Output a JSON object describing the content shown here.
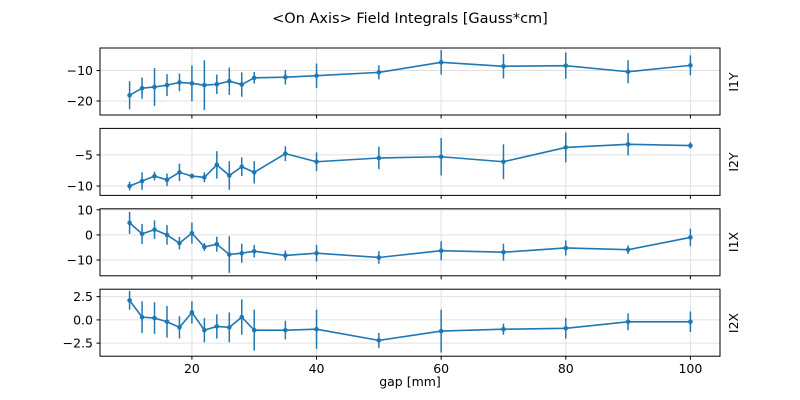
{
  "chart_data": {
    "type": "line",
    "title": "<On Axis> Field Integrals [Gauss*cm]",
    "xlabel": "gap [mm]",
    "line_color": "#1f77b4",
    "grid_color": "#e0e0e0",
    "grid": true,
    "legend": "none",
    "x": [
      10,
      12,
      14,
      16,
      18,
      20,
      22,
      24,
      26,
      28,
      30,
      35,
      40,
      50,
      60,
      70,
      80,
      90,
      100
    ],
    "xlim": [
      5.25,
      104.75
    ],
    "xticks": [
      20,
      40,
      60,
      80,
      100
    ],
    "xtick_labels": [
      "20",
      "40",
      "60",
      "80",
      "100"
    ],
    "subplots": [
      {
        "label": "I1Y",
        "ylim": [
          -24.6,
          -2.6
        ],
        "yticks": [
          -10,
          -20
        ],
        "ytick_labels": [
          "−10",
          "−20"
        ],
        "y": [
          -18.1,
          -15.8,
          -15.4,
          -14.8,
          -13.9,
          -14.2,
          -14.8,
          -14.5,
          -13.5,
          -14.6,
          -12.4,
          -12.2,
          -11.7,
          -10.6,
          -7.3,
          -8.6,
          -8.4,
          -10.4,
          -8.3
        ],
        "yerr": [
          4.6,
          3.5,
          6.2,
          3.6,
          2.9,
          5.9,
          8.2,
          3.2,
          4.5,
          4.0,
          1.9,
          2.4,
          4.0,
          2.3,
          4.0,
          4.0,
          4.3,
          3.8,
          3.3
        ]
      },
      {
        "label": "I2Y",
        "ylim": [
          -11.5,
          -0.75
        ],
        "yticks": [
          -5,
          -10
        ],
        "ytick_labels": [
          "−5",
          "−10"
        ],
        "y": [
          -10.0,
          -9.2,
          -8.4,
          -9.0,
          -7.8,
          -8.4,
          -8.6,
          -6.6,
          -8.3,
          -6.9,
          -7.8,
          -4.8,
          -6.1,
          -5.5,
          -5.3,
          -6.1,
          -3.8,
          -3.3,
          -3.5
        ],
        "yerr": [
          0.7,
          1.4,
          0.7,
          1.0,
          1.4,
          0.4,
          0.8,
          2.2,
          2.3,
          1.5,
          1.8,
          1.2,
          1.5,
          1.8,
          3.0,
          2.8,
          2.4,
          1.8,
          0.5
        ]
      },
      {
        "label": "I1X",
        "ylim": [
          -16.3,
          10.4
        ],
        "yticks": [
          10,
          0,
          -10
        ],
        "ytick_labels": [
          "10",
          "0",
          "−10"
        ],
        "y": [
          4.8,
          0.4,
          2.1,
          0.0,
          -3.3,
          0.7,
          -4.8,
          -3.7,
          -7.8,
          -7.3,
          -6.5,
          -8.2,
          -7.3,
          -9.0,
          -6.3,
          -6.9,
          -5.2,
          -5.9,
          -1.0
        ],
        "yerr": [
          4.4,
          4.0,
          3.7,
          3.9,
          2.5,
          4.2,
          1.6,
          3.0,
          7.3,
          3.8,
          2.5,
          2.0,
          3.3,
          2.5,
          3.8,
          3.4,
          3.0,
          1.7,
          3.5
        ]
      },
      {
        "label": "I2X",
        "ylim": [
          -3.9,
          3.3
        ],
        "yticks": [
          2.5,
          0,
          -2.5
        ],
        "ytick_labels": [
          "2.5",
          "0.0",
          "−2.5"
        ],
        "y": [
          2.1,
          0.3,
          0.2,
          -0.2,
          -0.8,
          0.8,
          -1.1,
          -0.7,
          -0.8,
          0.3,
          -1.1,
          -1.1,
          -1.0,
          -2.2,
          -1.2,
          -1.0,
          -0.9,
          -0.2,
          -0.2
        ],
        "yerr": [
          1.0,
          1.7,
          1.7,
          1.7,
          1.2,
          1.2,
          1.3,
          1.3,
          1.6,
          1.9,
          2.2,
          1.0,
          2.1,
          0.8,
          2.3,
          0.6,
          1.1,
          0.9,
          1.1
        ]
      }
    ]
  }
}
